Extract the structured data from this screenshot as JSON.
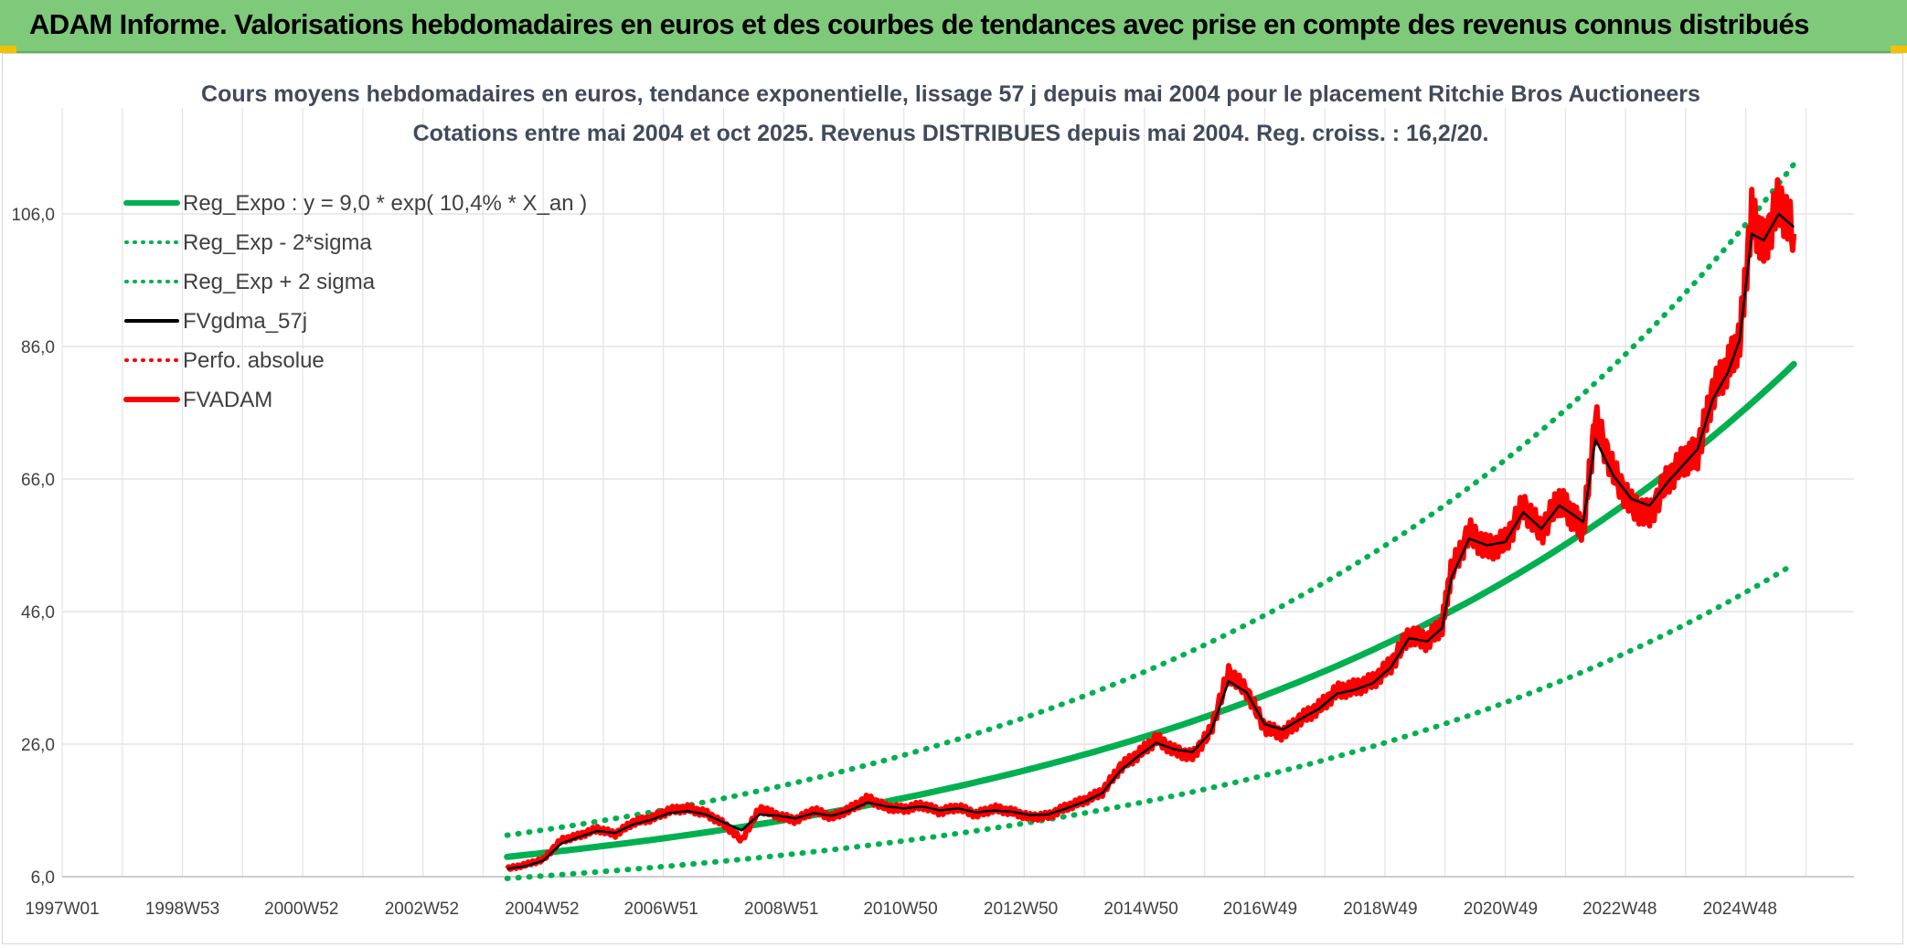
{
  "banner": {
    "text": "ADAM Informe. Valorisations hebdomadaires en euros et des courbes de tendances avec prise en compte des revenus connus distribués"
  },
  "colors": {
    "banner_bg": "#7ec97a",
    "regression": "#00b050",
    "smoothed": "#000000",
    "perf_absolue": "#ff0000",
    "fvadam": "#ff0000",
    "grid": "#e3e3e3"
  },
  "chart_data": {
    "type": "line",
    "title": [
      "Cours moyens hebdomadaires en euros, tendance exponentielle, lissage 57 j depuis mai 2004 pour le placement Ritchie Bros Auctioneers",
      "Cotations entre mai 2004 et oct 2025. Revenus DISTRIBUES depuis mai 2004. Reg. croiss. : 16,2/20."
    ],
    "x_tick_labels": [
      "1997W01",
      "1998W53",
      "2000W52",
      "2002W52",
      "2004W52",
      "2006W51",
      "2008W51",
      "2010W50",
      "2012W50",
      "2014W50",
      "2016W49",
      "2018W49",
      "2020W49",
      "2022W48",
      "2024W48"
    ],
    "x_range_years": [
      1997.0,
      2026.8
    ],
    "y_tick_labels": [
      "6,0",
      "26,0",
      "46,0",
      "66,0",
      "86,0",
      "106,0"
    ],
    "ylim": [
      6,
      122
    ],
    "legend": [
      {
        "key": "reg_expo",
        "label": "Reg_Expo : y = 9,0 * exp( 10,4% *  X_an )",
        "color": "#00b050",
        "style": "solid-thick"
      },
      {
        "key": "reg_minus",
        "label": "Reg_Exp - 2*sigma",
        "color": "#00b050",
        "style": "dotted"
      },
      {
        "key": "reg_plus",
        "label": "Reg_Exp + 2 sigma",
        "color": "#00b050",
        "style": "dotted"
      },
      {
        "key": "fvgdma",
        "label": "FVgdma_57j",
        "color": "#000000",
        "style": "solid"
      },
      {
        "key": "perfo",
        "label": "Perfo. absolue",
        "color": "#ff0000",
        "style": "dotted"
      },
      {
        "key": "fvadam",
        "label": "FVADAM",
        "color": "#ff0000",
        "style": "solid-thick"
      }
    ],
    "regression": {
      "a": 9.0,
      "rate": 0.104,
      "start_year": 2004.4,
      "end_year": 2025.8,
      "sigma_factor": 0.362
    },
    "fvadam": {
      "x": [
        2004.4,
        2004.7,
        2005.0,
        2005.3,
        2005.6,
        2005.9,
        2006.2,
        2006.5,
        2006.8,
        2007.1,
        2007.4,
        2007.7,
        2008.0,
        2008.3,
        2008.6,
        2008.9,
        2009.2,
        2009.5,
        2009.8,
        2010.1,
        2010.4,
        2010.7,
        2011.0,
        2011.3,
        2011.6,
        2011.9,
        2012.2,
        2012.5,
        2012.8,
        2013.1,
        2013.4,
        2013.7,
        2014.0,
        2014.3,
        2014.6,
        2014.9,
        2015.2,
        2015.5,
        2015.8,
        2016.1,
        2016.4,
        2016.7,
        2017.0,
        2017.3,
        2017.6,
        2017.9,
        2018.2,
        2018.5,
        2018.8,
        2019.1,
        2019.4,
        2019.7,
        2019.95,
        2020.1,
        2020.4,
        2020.7,
        2021.0,
        2021.3,
        2021.6,
        2021.9,
        2022.1,
        2022.3,
        2022.5,
        2022.8,
        2023.1,
        2023.4,
        2023.7,
        2024.0,
        2024.2,
        2024.45,
        2024.7,
        2024.9,
        2025.1,
        2025.3,
        2025.55,
        2025.8
      ],
      "values": [
        7.2,
        7.8,
        8.6,
        11.5,
        12.2,
        13.2,
        12.4,
        14.2,
        14.8,
        16.0,
        16.3,
        15.6,
        14.0,
        11.5,
        16.3,
        15.2,
        14.5,
        16.0,
        15.0,
        16.2,
        17.8,
        16.5,
        16.2,
        16.8,
        15.8,
        16.5,
        15.4,
        16.3,
        15.8,
        15.0,
        15.2,
        16.5,
        17.5,
        18.8,
        22.5,
        24.5,
        26.8,
        25.0,
        24.2,
        28.0,
        36.8,
        34.0,
        28.5,
        27.5,
        29.8,
        31.5,
        34.0,
        34.5,
        35.5,
        38.0,
        42.5,
        41.5,
        44.0,
        52.0,
        58.0,
        55.5,
        56.5,
        62.0,
        58.0,
        63.0,
        60.5,
        58.5,
        75.0,
        67.0,
        62.0,
        60.5,
        66.0,
        69.0,
        70.0,
        79.0,
        83.0,
        87.0,
        106.0,
        101.0,
        108.0,
        103.0
      ]
    },
    "fvgdma_57j": {
      "x": [
        2004.4,
        2004.7,
        2005.0,
        2005.3,
        2005.6,
        2005.9,
        2006.2,
        2006.5,
        2006.8,
        2007.1,
        2007.4,
        2007.7,
        2008.0,
        2008.3,
        2008.6,
        2008.9,
        2009.2,
        2009.5,
        2009.8,
        2010.1,
        2010.4,
        2010.7,
        2011.0,
        2011.3,
        2011.6,
        2011.9,
        2012.2,
        2012.5,
        2012.8,
        2013.1,
        2013.4,
        2013.7,
        2014.0,
        2014.3,
        2014.6,
        2014.9,
        2015.2,
        2015.5,
        2015.8,
        2016.1,
        2016.4,
        2016.7,
        2017.0,
        2017.3,
        2017.6,
        2017.9,
        2018.2,
        2018.5,
        2018.8,
        2019.1,
        2019.4,
        2019.7,
        2019.95,
        2020.1,
        2020.4,
        2020.7,
        2021.0,
        2021.3,
        2021.6,
        2021.9,
        2022.1,
        2022.3,
        2022.5,
        2022.8,
        2023.1,
        2023.4,
        2023.7,
        2024.0,
        2024.2,
        2024.45,
        2024.7,
        2024.9,
        2025.1,
        2025.3,
        2025.55,
        2025.8
      ],
      "values": [
        7.2,
        7.6,
        8.4,
        11.0,
        12.0,
        12.9,
        12.6,
        13.9,
        14.6,
        15.6,
        15.9,
        15.4,
        14.2,
        13.0,
        15.4,
        15.2,
        14.8,
        15.6,
        15.2,
        16.0,
        17.2,
        16.6,
        16.3,
        16.6,
        16.0,
        16.3,
        15.7,
        16.0,
        15.8,
        15.3,
        15.4,
        16.3,
        17.3,
        18.6,
        22.0,
        24.2,
        26.2,
        25.2,
        24.8,
        27.8,
        35.5,
        33.8,
        29.0,
        28.2,
        29.8,
        31.3,
        33.6,
        34.2,
        35.2,
        37.6,
        42.0,
        41.5,
        43.5,
        51.0,
        57.0,
        56.0,
        56.5,
        61.0,
        58.5,
        62.0,
        60.8,
        59.5,
        72.0,
        66.5,
        63.0,
        62.0,
        65.5,
        68.5,
        70.5,
        78.0,
        82.0,
        87.0,
        103.0,
        102.0,
        106.0,
        104.0
      ]
    }
  }
}
